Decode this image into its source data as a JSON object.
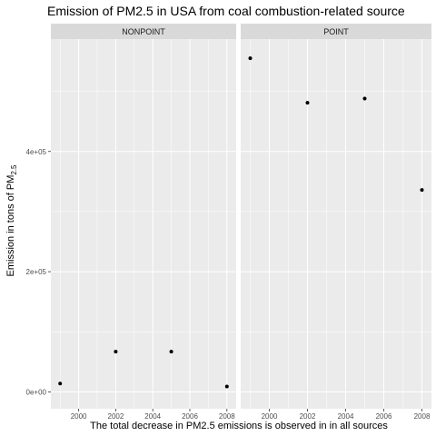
{
  "chart_data": {
    "type": "scatter",
    "title": "Emission of PM2.5 in USA from coal combustion-related source",
    "xlabel": "The total decrease in PM2.5 emissions is observed in in all sources",
    "ylabel": {
      "main": "Emission in tons of PM",
      "subscript": "2.5"
    },
    "xlim": [
      1998.5,
      2008.5
    ],
    "ylim": [
      -28000,
      587000
    ],
    "x_ticks": [
      2000,
      2002,
      2004,
      2006,
      2008
    ],
    "x_tick_labels": [
      "2000",
      "2002",
      "2004",
      "2006",
      "2008"
    ],
    "y_ticks": [
      0,
      200000,
      400000
    ],
    "y_tick_labels": [
      "0e+00",
      "2e+05",
      "4e+05"
    ],
    "grid": true,
    "facets": [
      {
        "name": "NONPOINT",
        "points": [
          {
            "x": 1999,
            "y": 14000
          },
          {
            "x": 2002,
            "y": 67000
          },
          {
            "x": 2005,
            "y": 67000
          },
          {
            "x": 2008,
            "y": 9000
          }
        ]
      },
      {
        "name": "POINT",
        "points": [
          {
            "x": 1999,
            "y": 555000
          },
          {
            "x": 2002,
            "y": 481000
          },
          {
            "x": 2005,
            "y": 488000
          },
          {
            "x": 2008,
            "y": 336000
          }
        ]
      }
    ],
    "colors": {
      "panel_background": "#ebebeb",
      "strip_background": "#d9d9d9",
      "grid_major": "#ffffff",
      "point": "#000000"
    }
  }
}
